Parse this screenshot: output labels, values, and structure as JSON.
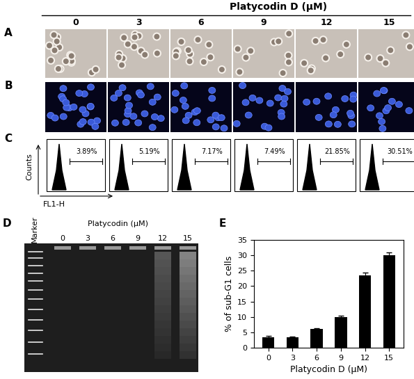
{
  "header": {
    "title": "Platycodin D (μM)",
    "concentrations": [
      0,
      3,
      6,
      9,
      12,
      15
    ]
  },
  "panel_labels": [
    "A",
    "B",
    "C",
    "D",
    "E"
  ],
  "flow": {
    "y_label": "Counts",
    "x_label": "FL1-H",
    "gate_labels": [
      "3.89%",
      "5.19%",
      "7.17%",
      "7.49%",
      "21.85%",
      "30.51%"
    ]
  },
  "gel": {
    "marker_label": "Marker",
    "title": "Platycodin (μM)",
    "lanes": [
      0,
      3,
      6,
      9,
      12,
      15
    ]
  },
  "chart_data": {
    "type": "bar",
    "categories": [
      "0",
      "3",
      "6",
      "9",
      "12",
      "15"
    ],
    "values": [
      3.5,
      3.5,
      6,
      10,
      23.5,
      30
    ],
    "errors": [
      0.3,
      0.2,
      0.3,
      0.4,
      1.0,
      1.0
    ],
    "color": "#000000",
    "ylim": [
      0,
      35
    ],
    "yticks": [
      0,
      5,
      10,
      15,
      20,
      25,
      30,
      35
    ],
    "x_label": "Platycodin D (μM)",
    "y_label": "% of sub-G1 cells"
  }
}
